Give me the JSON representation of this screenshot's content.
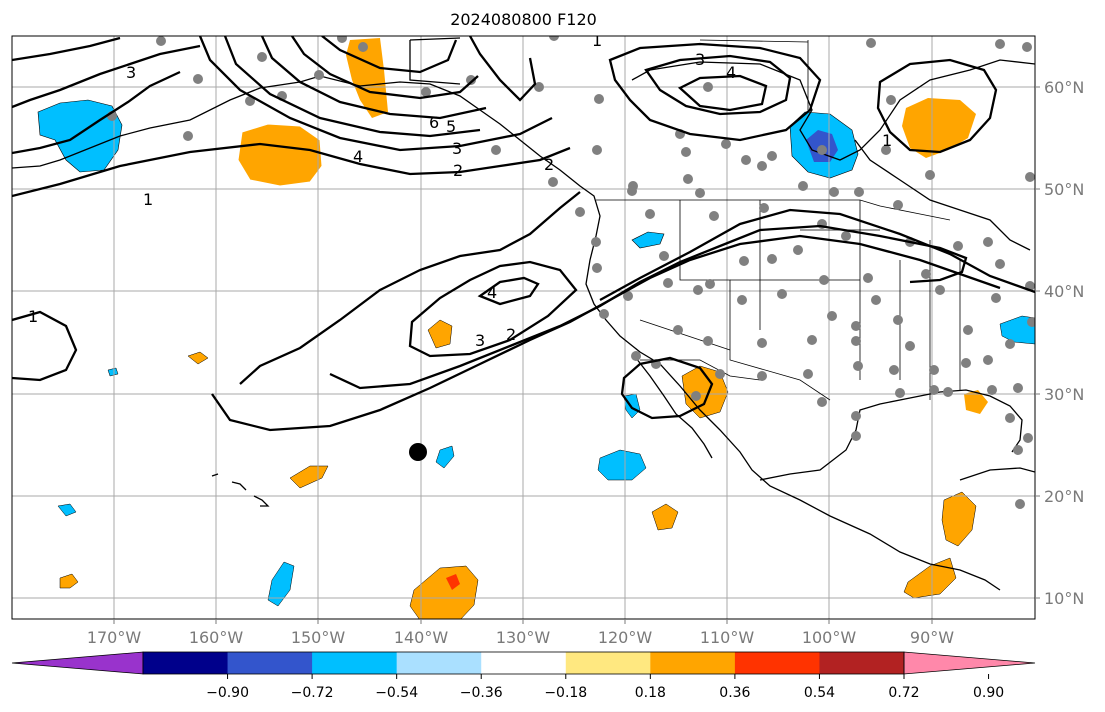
{
  "title": "2024080800 F120",
  "map": {
    "lon_labels": [
      "170°W",
      "160°W",
      "150°W",
      "140°W",
      "130°W",
      "120°W",
      "110°W",
      "100°W",
      "90°W"
    ],
    "lat_labels": [
      "60°N",
      "50°N",
      "40°N",
      "30°N",
      "20°N",
      "10°N"
    ],
    "contour_labels": [
      "1",
      "3",
      "2",
      "4",
      "6",
      "5",
      "3",
      "2",
      "4",
      "3",
      "2",
      "1",
      "4",
      "1",
      "1"
    ]
  },
  "colorbar": {
    "tick_labels": [
      "−0.90",
      "−0.72",
      "−0.54",
      "−0.36",
      "−0.18",
      "0.18",
      "0.36",
      "0.54",
      "0.72",
      "0.90"
    ],
    "colors": [
      "#9933cc",
      "#00008b",
      "#3355cc",
      "#00bfff",
      "#aae0ff",
      "#ffffff",
      "#ffe880",
      "#ffa500",
      "#ff3300",
      "#b22222",
      "#ff88aa"
    ]
  },
  "colors": {
    "orange": "#ffa500",
    "light_blue": "#00bfff",
    "dark_blue": "#3355cc",
    "red": "#ff3300",
    "station": "#808080"
  }
}
